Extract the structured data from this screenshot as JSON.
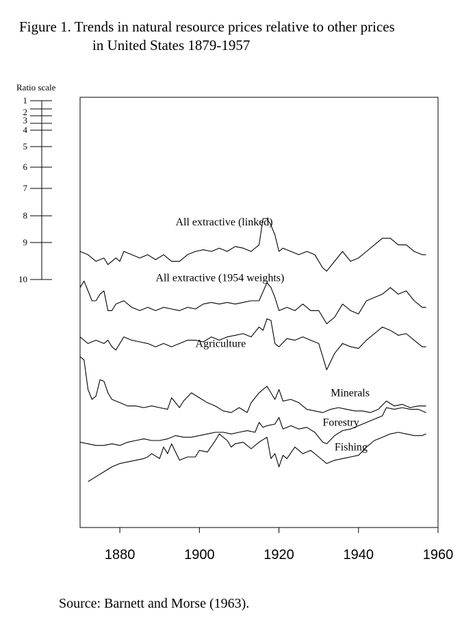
{
  "title_line1": "Figure 1. Trends in natural resource prices relative to other prices",
  "title_line2": "in United States 1879-1957",
  "source": "Source: Barnett and Morse (1963).",
  "chart_data": {
    "type": "line",
    "xlabel": "",
    "ylabel": "Ratio scale",
    "xlim": [
      1870,
      1960
    ],
    "x_ticks": [
      1880,
      1900,
      1920,
      1940,
      1960
    ],
    "ratio_scale_labels": [
      "1",
      "2",
      "3",
      "4",
      "5",
      "6",
      "7",
      "8",
      "9",
      "10"
    ],
    "grid": false,
    "series": [
      {
        "name": "All extractive (linked)",
        "points": [
          [
            1870,
            7.0
          ],
          [
            1872,
            7.1
          ],
          [
            1874,
            7.3
          ],
          [
            1876,
            7.2
          ],
          [
            1877,
            7.4
          ],
          [
            1878,
            7.3
          ],
          [
            1879,
            7.2
          ],
          [
            1880,
            7.3
          ],
          [
            1881,
            7.0
          ],
          [
            1883,
            7.1
          ],
          [
            1885,
            7.2
          ],
          [
            1887,
            7.1
          ],
          [
            1889,
            7.25
          ],
          [
            1891,
            7.1
          ],
          [
            1893,
            7.3
          ],
          [
            1895,
            7.3
          ],
          [
            1897,
            7.1
          ],
          [
            1899,
            7.0
          ],
          [
            1901,
            6.95
          ],
          [
            1903,
            7.0
          ],
          [
            1905,
            6.9
          ],
          [
            1907,
            7.0
          ],
          [
            1909,
            6.85
          ],
          [
            1911,
            6.9
          ],
          [
            1913,
            7.0
          ],
          [
            1915,
            6.8
          ],
          [
            1916,
            6.0
          ],
          [
            1917,
            6.0
          ],
          [
            1918,
            6.2
          ],
          [
            1919,
            6.5
          ],
          [
            1920,
            7.0
          ],
          [
            1921,
            6.9
          ],
          [
            1923,
            7.0
          ],
          [
            1925,
            7.1
          ],
          [
            1927,
            7.0
          ],
          [
            1929,
            7.1
          ],
          [
            1931,
            7.5
          ],
          [
            1932,
            7.6
          ],
          [
            1934,
            7.3
          ],
          [
            1936,
            7.0
          ],
          [
            1938,
            7.3
          ],
          [
            1940,
            7.2
          ],
          [
            1942,
            7.0
          ],
          [
            1944,
            6.8
          ],
          [
            1946,
            6.6
          ],
          [
            1948,
            6.6
          ],
          [
            1950,
            6.8
          ],
          [
            1952,
            6.8
          ],
          [
            1954,
            7.0
          ],
          [
            1956,
            7.1
          ],
          [
            1957,
            7.1
          ]
        ]
      },
      {
        "name": "All extractive (1954 weights)",
        "points": [
          [
            1870,
            8.1
          ],
          [
            1871,
            7.9
          ],
          [
            1872,
            8.2
          ],
          [
            1873,
            8.5
          ],
          [
            1874,
            8.5
          ],
          [
            1875,
            8.3
          ],
          [
            1876,
            8.2
          ],
          [
            1877,
            8.8
          ],
          [
            1878,
            8.8
          ],
          [
            1879,
            8.6
          ],
          [
            1881,
            8.5
          ],
          [
            1883,
            8.7
          ],
          [
            1885,
            8.8
          ],
          [
            1887,
            8.7
          ],
          [
            1889,
            8.8
          ],
          [
            1891,
            8.7
          ],
          [
            1893,
            8.75
          ],
          [
            1895,
            8.8
          ],
          [
            1897,
            8.7
          ],
          [
            1899,
            8.75
          ],
          [
            1901,
            8.6
          ],
          [
            1903,
            8.55
          ],
          [
            1905,
            8.6
          ],
          [
            1907,
            8.55
          ],
          [
            1909,
            8.6
          ],
          [
            1911,
            8.55
          ],
          [
            1913,
            8.5
          ],
          [
            1915,
            8.5
          ],
          [
            1917,
            7.95
          ],
          [
            1918,
            8.1
          ],
          [
            1919,
            8.4
          ],
          [
            1920,
            8.8
          ],
          [
            1922,
            8.7
          ],
          [
            1924,
            8.8
          ],
          [
            1926,
            8.6
          ],
          [
            1928,
            8.8
          ],
          [
            1930,
            8.8
          ],
          [
            1932,
            9.2
          ],
          [
            1934,
            9.0
          ],
          [
            1936,
            8.6
          ],
          [
            1938,
            8.8
          ],
          [
            1940,
            8.9
          ],
          [
            1942,
            8.5
          ],
          [
            1944,
            8.4
          ],
          [
            1946,
            8.3
          ],
          [
            1948,
            8.1
          ],
          [
            1950,
            8.3
          ],
          [
            1952,
            8.2
          ],
          [
            1954,
            8.5
          ],
          [
            1956,
            8.7
          ],
          [
            1957,
            8.7
          ]
        ]
      },
      {
        "name": "Agriculture",
        "points": [
          [
            1870,
            9.6
          ],
          [
            1872,
            9.8
          ],
          [
            1874,
            9.7
          ],
          [
            1876,
            9.8
          ],
          [
            1877,
            9.7
          ],
          [
            1878,
            9.9
          ],
          [
            1879,
            10.0
          ],
          [
            1881,
            9.6
          ],
          [
            1883,
            9.7
          ],
          [
            1885,
            9.75
          ],
          [
            1887,
            9.8
          ],
          [
            1889,
            9.9
          ],
          [
            1891,
            9.8
          ],
          [
            1893,
            9.9
          ],
          [
            1895,
            9.8
          ],
          [
            1897,
            9.7
          ],
          [
            1899,
            9.7
          ],
          [
            1901,
            9.75
          ],
          [
            1903,
            9.6
          ],
          [
            1905,
            9.7
          ],
          [
            1907,
            9.6
          ],
          [
            1909,
            9.55
          ],
          [
            1911,
            9.5
          ],
          [
            1913,
            9.6
          ],
          [
            1915,
            9.3
          ],
          [
            1916,
            9.4
          ],
          [
            1917,
            9.05
          ],
          [
            1918,
            9.1
          ],
          [
            1919,
            9.8
          ],
          [
            1920,
            9.9
          ],
          [
            1922,
            9.65
          ],
          [
            1924,
            9.7
          ],
          [
            1926,
            9.6
          ],
          [
            1928,
            9.7
          ],
          [
            1930,
            9.8
          ],
          [
            1932,
            10.6
          ],
          [
            1934,
            10.1
          ],
          [
            1936,
            9.8
          ],
          [
            1938,
            9.9
          ],
          [
            1940,
            9.95
          ],
          [
            1942,
            9.7
          ],
          [
            1944,
            9.5
          ],
          [
            1946,
            9.3
          ],
          [
            1948,
            9.4
          ],
          [
            1950,
            9.55
          ],
          [
            1952,
            9.5
          ],
          [
            1954,
            9.7
          ],
          [
            1956,
            9.9
          ],
          [
            1957,
            9.9
          ]
        ]
      },
      {
        "name": "Minerals",
        "points": [
          [
            1870,
            10.2
          ],
          [
            1871,
            10.3
          ],
          [
            1872,
            11.2
          ],
          [
            1873,
            11.5
          ],
          [
            1874,
            11.4
          ],
          [
            1875,
            10.9
          ],
          [
            1876,
            10.95
          ],
          [
            1877,
            11.3
          ],
          [
            1878,
            11.5
          ],
          [
            1879,
            11.55
          ],
          [
            1880,
            11.6
          ],
          [
            1882,
            11.7
          ],
          [
            1884,
            11.7
          ],
          [
            1886,
            11.75
          ],
          [
            1888,
            11.7
          ],
          [
            1890,
            11.75
          ],
          [
            1892,
            11.8
          ],
          [
            1893,
            11.45
          ],
          [
            1895,
            11.75
          ],
          [
            1896,
            11.55
          ],
          [
            1898,
            11.3
          ],
          [
            1900,
            11.45
          ],
          [
            1902,
            11.6
          ],
          [
            1904,
            11.7
          ],
          [
            1906,
            11.85
          ],
          [
            1908,
            11.9
          ],
          [
            1910,
            11.75
          ],
          [
            1912,
            11.9
          ],
          [
            1913,
            11.6
          ],
          [
            1915,
            11.3
          ],
          [
            1917,
            11.1
          ],
          [
            1918,
            11.3
          ],
          [
            1919,
            11.5
          ],
          [
            1920,
            11.2
          ],
          [
            1921,
            11.55
          ],
          [
            1923,
            11.5
          ],
          [
            1925,
            11.6
          ],
          [
            1927,
            11.8
          ],
          [
            1929,
            11.85
          ],
          [
            1931,
            11.9
          ],
          [
            1933,
            11.8
          ],
          [
            1935,
            11.75
          ],
          [
            1937,
            11.8
          ],
          [
            1939,
            11.85
          ],
          [
            1941,
            11.85
          ],
          [
            1943,
            11.9
          ],
          [
            1945,
            11.8
          ],
          [
            1947,
            11.55
          ],
          [
            1949,
            11.7
          ],
          [
            1951,
            11.65
          ],
          [
            1953,
            11.75
          ],
          [
            1955,
            11.7
          ],
          [
            1957,
            11.7
          ]
        ]
      },
      {
        "name": "Forestry",
        "points": [
          [
            1870,
            12.8
          ],
          [
            1872,
            12.85
          ],
          [
            1874,
            12.9
          ],
          [
            1876,
            12.9
          ],
          [
            1878,
            12.85
          ],
          [
            1880,
            12.9
          ],
          [
            1882,
            12.8
          ],
          [
            1884,
            12.75
          ],
          [
            1886,
            12.7
          ],
          [
            1888,
            12.75
          ],
          [
            1890,
            12.75
          ],
          [
            1892,
            12.7
          ],
          [
            1894,
            12.6
          ],
          [
            1896,
            12.65
          ],
          [
            1898,
            12.65
          ],
          [
            1900,
            12.6
          ],
          [
            1902,
            12.55
          ],
          [
            1904,
            12.5
          ],
          [
            1906,
            12.5
          ],
          [
            1908,
            12.55
          ],
          [
            1910,
            12.5
          ],
          [
            1912,
            12.45
          ],
          [
            1914,
            12.5
          ],
          [
            1915,
            12.2
          ],
          [
            1916,
            12.35
          ],
          [
            1917,
            12.3
          ],
          [
            1919,
            12.25
          ],
          [
            1920,
            12.05
          ],
          [
            1921,
            12.4
          ],
          [
            1923,
            12.3
          ],
          [
            1925,
            12.4
          ],
          [
            1927,
            12.35
          ],
          [
            1929,
            12.5
          ],
          [
            1931,
            12.8
          ],
          [
            1932,
            12.85
          ],
          [
            1934,
            12.6
          ],
          [
            1936,
            12.45
          ],
          [
            1938,
            12.4
          ],
          [
            1940,
            12.3
          ],
          [
            1942,
            12.2
          ],
          [
            1944,
            12.1
          ],
          [
            1946,
            12.0
          ],
          [
            1947,
            11.75
          ],
          [
            1949,
            11.8
          ],
          [
            1951,
            11.75
          ],
          [
            1953,
            11.8
          ],
          [
            1955,
            11.8
          ],
          [
            1957,
            11.9
          ]
        ]
      },
      {
        "name": "Fishing",
        "points": [
          [
            1872,
            14.0
          ],
          [
            1874,
            13.85
          ],
          [
            1876,
            13.7
          ],
          [
            1878,
            13.55
          ],
          [
            1880,
            13.45
          ],
          [
            1882,
            13.4
          ],
          [
            1884,
            13.35
          ],
          [
            1886,
            13.3
          ],
          [
            1887,
            13.25
          ],
          [
            1888,
            13.15
          ],
          [
            1890,
            13.3
          ],
          [
            1891,
            12.95
          ],
          [
            1892,
            13.15
          ],
          [
            1893,
            12.85
          ],
          [
            1894,
            13.1
          ],
          [
            1895,
            13.35
          ],
          [
            1897,
            13.25
          ],
          [
            1899,
            13.25
          ],
          [
            1900,
            13.05
          ],
          [
            1902,
            13.1
          ],
          [
            1904,
            12.75
          ],
          [
            1905,
            12.55
          ],
          [
            1907,
            12.75
          ],
          [
            1908,
            12.95
          ],
          [
            1909,
            12.85
          ],
          [
            1911,
            12.8
          ],
          [
            1913,
            13.0
          ],
          [
            1915,
            12.8
          ],
          [
            1917,
            12.65
          ],
          [
            1918,
            13.3
          ],
          [
            1919,
            13.15
          ],
          [
            1920,
            13.55
          ],
          [
            1921,
            13.2
          ],
          [
            1922,
            13.3
          ],
          [
            1924,
            12.95
          ],
          [
            1926,
            13.15
          ],
          [
            1928,
            13.05
          ],
          [
            1930,
            13.25
          ],
          [
            1932,
            13.45
          ],
          [
            1934,
            13.35
          ],
          [
            1936,
            13.3
          ],
          [
            1938,
            13.25
          ],
          [
            1940,
            13.2
          ],
          [
            1942,
            12.95
          ],
          [
            1944,
            12.75
          ],
          [
            1946,
            12.65
          ],
          [
            1948,
            12.55
          ],
          [
            1950,
            12.5
          ],
          [
            1952,
            12.55
          ],
          [
            1954,
            12.6
          ],
          [
            1956,
            12.6
          ],
          [
            1957,
            12.55
          ]
        ]
      }
    ]
  }
}
